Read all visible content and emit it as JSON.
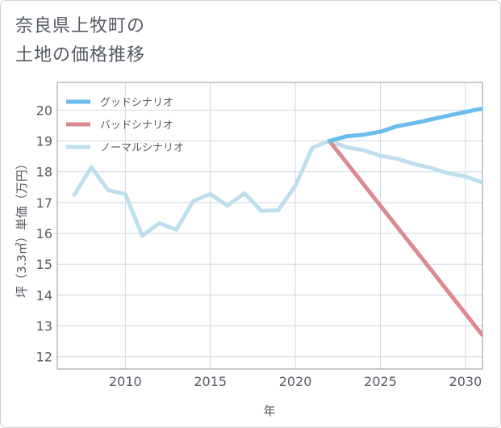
{
  "title_lines": [
    "奈良県上牧町の",
    "土地の価格推移"
  ],
  "chart_data": {
    "type": "line",
    "title": "奈良県上牧町の土地の価格推移",
    "xlabel": "年",
    "ylabel": "坪（3.3㎡）単価（万円）",
    "xlim": [
      2006,
      2031
    ],
    "ylim": [
      11.6,
      20.9
    ],
    "x_ticks": [
      2010,
      2015,
      2020,
      2025,
      2030
    ],
    "y_ticks": [
      12,
      13,
      14,
      15,
      16,
      17,
      18,
      19,
      20
    ],
    "grid": true,
    "legend_position": "top-left",
    "series": [
      {
        "name": "グッドシナリオ",
        "color": "#6bbbee",
        "x": [
          2022,
          2023,
          2024,
          2025,
          2026,
          2027,
          2028,
          2029,
          2030,
          2031
        ],
        "values": [
          19.0,
          19.15,
          19.2,
          19.3,
          19.48,
          19.58,
          19.7,
          19.82,
          19.94,
          20.05
        ]
      },
      {
        "name": "バッドシナリオ",
        "color": "#dc8a8f",
        "x": [
          2022,
          2023,
          2024,
          2025,
          2026,
          2027,
          2028,
          2029,
          2030,
          2031
        ],
        "values": [
          19.0,
          18.3,
          17.6,
          16.9,
          16.2,
          15.5,
          14.8,
          14.1,
          13.4,
          12.7
        ]
      },
      {
        "name": "ノーマルシナリオ",
        "color": "#bfdfef",
        "x": [
          2007,
          2008,
          2009,
          2010,
          2011,
          2012,
          2013,
          2014,
          2015,
          2016,
          2017,
          2018,
          2019,
          2020,
          2021,
          2022,
          2023,
          2024,
          2025,
          2026,
          2027,
          2028,
          2029,
          2030,
          2031
        ],
        "values": [
          17.25,
          18.15,
          17.4,
          17.28,
          15.92,
          16.33,
          16.12,
          17.05,
          17.28,
          16.9,
          17.3,
          16.73,
          16.75,
          17.55,
          18.78,
          19.0,
          18.8,
          18.7,
          18.52,
          18.42,
          18.25,
          18.12,
          17.95,
          17.85,
          17.65
        ]
      }
    ]
  }
}
